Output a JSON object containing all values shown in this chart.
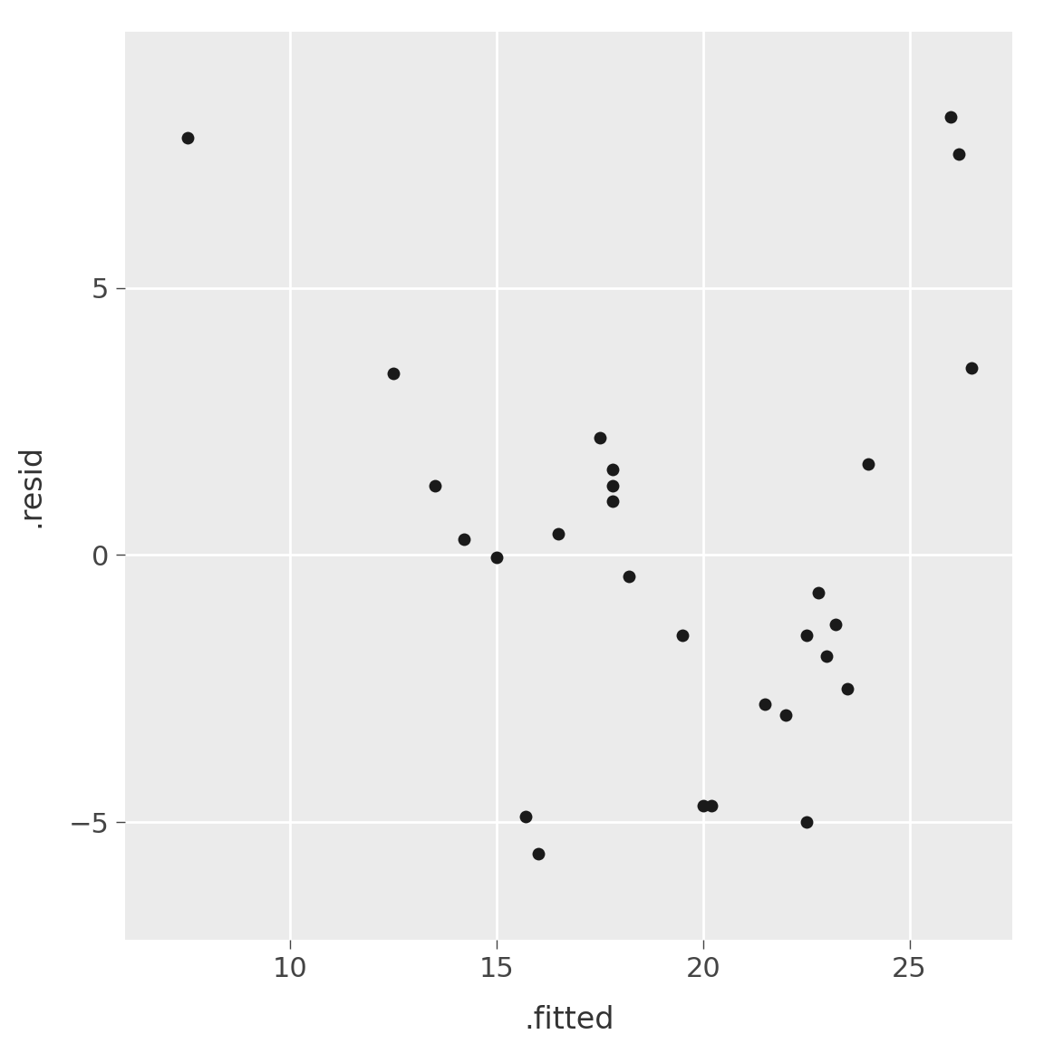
{
  "x": [
    7.5,
    12.5,
    13.5,
    14.2,
    15.0,
    15.7,
    16.0,
    16.5,
    17.5,
    17.8,
    17.8,
    17.8,
    18.2,
    19.5,
    20.0,
    20.2,
    21.5,
    22.0,
    22.5,
    22.8,
    23.0,
    23.2,
    23.5,
    24.0,
    22.5,
    26.0,
    26.2,
    26.5
  ],
  "y": [
    7.8,
    3.4,
    1.3,
    0.3,
    -0.05,
    -4.9,
    -5.6,
    0.4,
    2.2,
    1.6,
    1.3,
    1.0,
    -0.4,
    -1.5,
    -4.7,
    -4.7,
    -2.8,
    -3.0,
    -1.5,
    -0.7,
    -1.9,
    -1.3,
    -2.5,
    1.7,
    -5.0,
    8.2,
    7.5,
    3.5
  ],
  "xlabel": ".fitted",
  "ylabel": ".resid",
  "xlim": [
    6.0,
    27.5
  ],
  "ylim": [
    -7.2,
    9.8
  ],
  "xticks": [
    10,
    15,
    20,
    25
  ],
  "yticks": [
    -5,
    0,
    5
  ],
  "panel_bg_color": "#ebebeb",
  "outer_bg_color": "#ffffff",
  "grid_color": "#ffffff",
  "point_color": "#1a1a1a",
  "point_size": 100,
  "label_fontsize": 24,
  "tick_fontsize": 22
}
